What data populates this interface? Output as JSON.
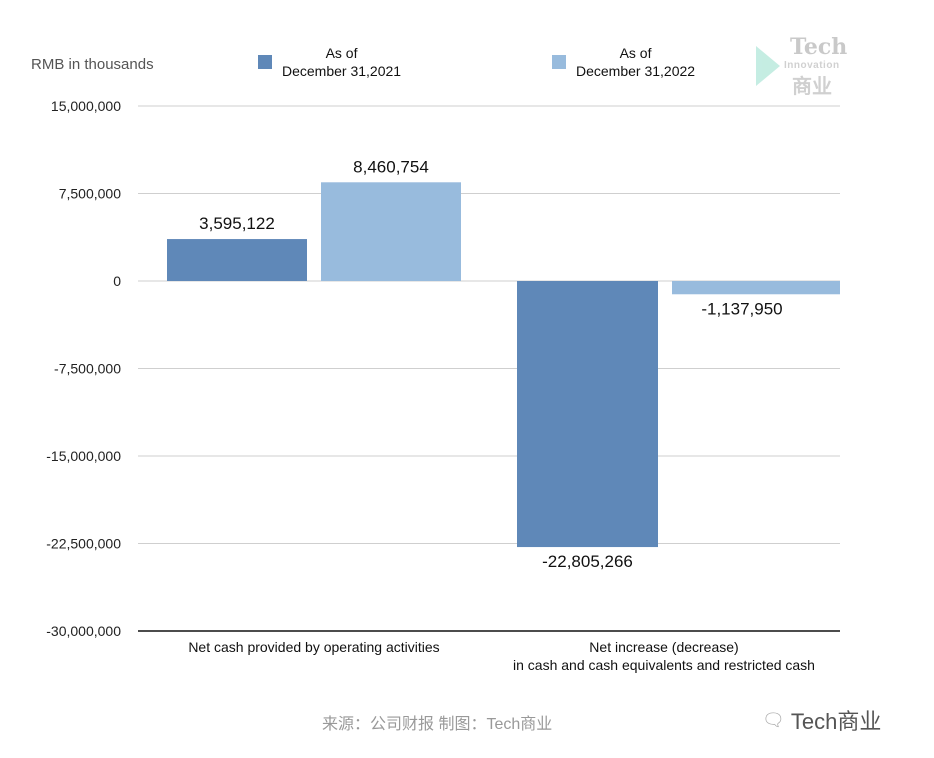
{
  "chart_data": {
    "type": "bar",
    "unit_label": "RMB in thousands",
    "categories": [
      [
        "Net cash provided by operating activities"
      ],
      [
        "Net increase (decrease)",
        "in cash and cash equivalents and restricted cash"
      ]
    ],
    "series": [
      {
        "name_line1": "As of",
        "name_line2": "December 31,2021",
        "color": "#5f88b8",
        "values": [
          3595122,
          -22805266
        ],
        "labels": [
          "3,595,122",
          "-22,805,266"
        ]
      },
      {
        "name_line1": "As of",
        "name_line2": "December 31,2022",
        "color": "#98bbdd",
        "values": [
          8460754,
          -1137950
        ],
        "labels": [
          "8,460,754",
          "-1,137,950"
        ]
      }
    ],
    "ylim": [
      -30000000,
      15000000
    ],
    "yticks": [
      15000000,
      7500000,
      0,
      -7500000,
      -15000000,
      -22500000,
      -30000000
    ],
    "ytick_labels": [
      "15,000,000",
      "7,500,000",
      "0",
      "-7,500,000",
      "-15,000,000",
      "-22,500,000",
      "-30,000,000"
    ],
    "grid": true,
    "legend": "top"
  },
  "logo": {
    "text1": "Tech",
    "text2": "Innovation",
    "text3": "商业"
  },
  "source": "来源：公司财报 制图：Tech商业",
  "watermark": "Tech商业"
}
